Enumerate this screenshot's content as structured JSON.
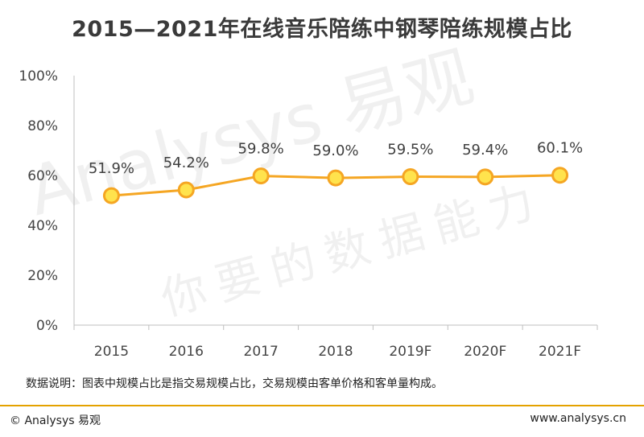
{
  "title": "2015—2021年在线音乐陪练中钢琴陪练规模占比",
  "note": "数据说明：图表中规模占比是指交易规模占比，交易规模由客单价格和客单量构成。",
  "footer": {
    "copyright": "© Analysys 易观",
    "website": "www.analysys.cn"
  },
  "watermark": {
    "brand": "Analysys 易观",
    "slogan": "你要的数据能力"
  },
  "colors": {
    "line": "#f5a623",
    "marker_fill": "#ffe34d",
    "rule": "#e4a200",
    "axis": "#bfbfbf"
  },
  "chart_data": {
    "type": "line",
    "title": "2015—2021年在线音乐陪练中钢琴陪练规模占比",
    "categories": [
      "2015",
      "2016",
      "2017",
      "2018",
      "2019F",
      "2020F",
      "2021F"
    ],
    "values": [
      51.9,
      54.2,
      59.8,
      59.0,
      59.5,
      59.4,
      60.1
    ],
    "data_labels": [
      "51.9%",
      "54.2%",
      "59.8%",
      "59.0%",
      "59.5%",
      "59.4%",
      "60.1%"
    ],
    "yticks": [
      "0%",
      "20%",
      "40%",
      "60%",
      "80%",
      "100%"
    ],
    "ylim": [
      0,
      100
    ],
    "grid": false,
    "legend": "none"
  }
}
